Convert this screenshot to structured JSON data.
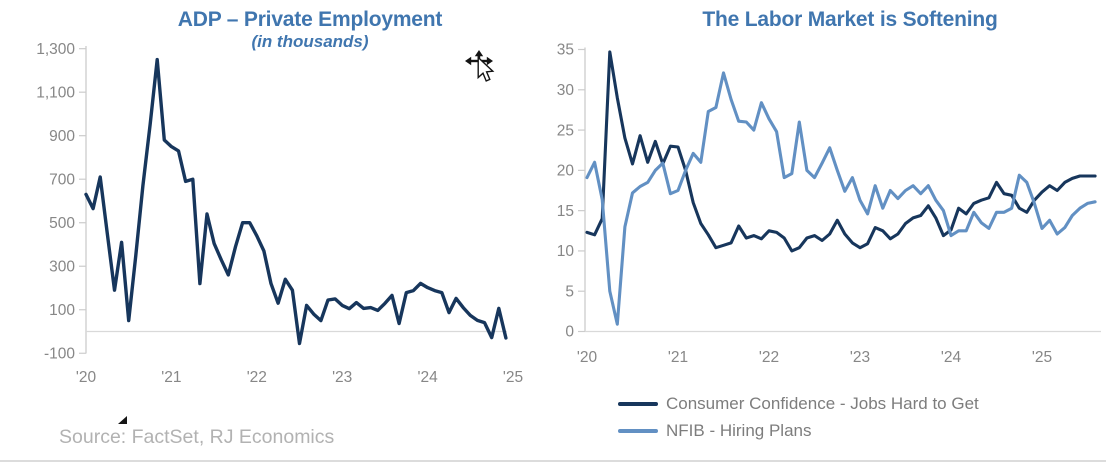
{
  "page": {
    "source_note": "Source: FactSet, RJ Economics"
  },
  "icons": {
    "cursor": "move-pointer-cursor",
    "annotation_marker": "small-black-triangle"
  },
  "colors": {
    "title_blue": "#4076AF",
    "dark_navy_series": "#17365C",
    "steel_blue_series": "#6290C3",
    "tick_label_gray": "#878787",
    "legend_text_gray": "#7d7d7d",
    "source_text_gray": "#b2b2b2",
    "axis_line_gray": "#cccccc"
  },
  "chart_data": [
    {
      "type": "line",
      "title": "ADP – Private Employment",
      "subtitle": "(in thousands)",
      "x_interval": "monthly",
      "x_tick_labels": [
        "'20",
        "'21",
        "'22",
        "'23",
        "'24",
        "'25"
      ],
      "y_ticks": [
        1300,
        1100,
        900,
        700,
        500,
        300,
        100,
        -100
      ],
      "y_tick_labels": [
        "1,300",
        "1,100",
        "900",
        "700",
        "500",
        "300",
        "100",
        "-100"
      ],
      "ylim": [
        -100,
        1300
      ],
      "grid": "baseline-only",
      "legend_position": "none",
      "series": [
        {
          "name": "ADP – Private Employment (in thousands)",
          "id": "adp-line",
          "color": "#17365C",
          "values": [
            630,
            565,
            710,
            450,
            190,
            410,
            50,
            350,
            670,
            950,
            1250,
            880,
            850,
            830,
            690,
            700,
            220,
            540,
            405,
            330,
            260,
            390,
            500,
            500,
            440,
            370,
            220,
            130,
            240,
            190,
            -55,
            120,
            80,
            50,
            145,
            150,
            120,
            105,
            133,
            106,
            110,
            97,
            129,
            166,
            37,
            179,
            188,
            221,
            202,
            188,
            179,
            87,
            152,
            110,
            74,
            51,
            41,
            -28,
            106,
            -30
          ]
        }
      ]
    },
    {
      "type": "line",
      "title": "The Labor Market is Softening",
      "subtitle": "",
      "x_interval": "monthly",
      "x_tick_labels": [
        "'20",
        "'21",
        "'22",
        "'23",
        "'24",
        "'25"
      ],
      "y_ticks": [
        35,
        30,
        25,
        20,
        15,
        10,
        5,
        0
      ],
      "y_tick_labels": [
        "35",
        "30",
        "25",
        "20",
        "15",
        "10",
        "5",
        "0"
      ],
      "ylim": [
        0,
        35
      ],
      "grid": "baseline-only",
      "legend_position": "bottom",
      "series": [
        {
          "name": "Consumer Confidence - Jobs Hard to Get",
          "id": "consumer-confidence-line",
          "color": "#17365C",
          "values": [
            12.3,
            12.0,
            14.0,
            34.7,
            29.0,
            24.0,
            20.8,
            24.3,
            21.0,
            23.6,
            20.8,
            23.0,
            22.9,
            20.0,
            16.0,
            13.4,
            12.0,
            10.4,
            10.7,
            11.0,
            13.1,
            11.6,
            11.9,
            11.5,
            12.5,
            12.3,
            11.6,
            10.0,
            10.4,
            11.6,
            11.9,
            11.3,
            12.1,
            13.8,
            12.1,
            11.0,
            10.4,
            10.9,
            12.9,
            12.5,
            11.5,
            12.1,
            13.4,
            14.1,
            14.4,
            15.6,
            14.1,
            11.9,
            12.6,
            15.3,
            14.6,
            15.9,
            16.3,
            16.6,
            18.5,
            17.1,
            16.9,
            15.3,
            14.8,
            16.3,
            17.3,
            18.1,
            17.5,
            18.5,
            19.0,
            19.3,
            19.3,
            19.3
          ]
        },
        {
          "name": "NFIB - Hiring Plans",
          "id": "nfib-line",
          "color": "#6290C3",
          "values": [
            19.1,
            21.0,
            16.4,
            5.0,
            0.9,
            13.0,
            17.2,
            18.0,
            18.5,
            20.0,
            20.9,
            17.1,
            17.5,
            20.0,
            22.1,
            21.0,
            27.3,
            27.8,
            32.1,
            28.8,
            26.1,
            26.0,
            25.0,
            28.4,
            26.4,
            24.8,
            19.1,
            19.6,
            26.0,
            20.0,
            19.1,
            20.9,
            22.8,
            20.0,
            17.4,
            19.1,
            16.3,
            14.6,
            18.1,
            15.3,
            17.5,
            16.5,
            17.5,
            18.1,
            17.1,
            18.1,
            16.3,
            15.0,
            11.9,
            12.5,
            12.5,
            14.8,
            13.5,
            12.8,
            14.8,
            14.8,
            15.3,
            19.4,
            18.5,
            15.9,
            12.8,
            13.8,
            12.1,
            12.9,
            14.4,
            15.3,
            15.9,
            16.1
          ]
        }
      ]
    }
  ]
}
